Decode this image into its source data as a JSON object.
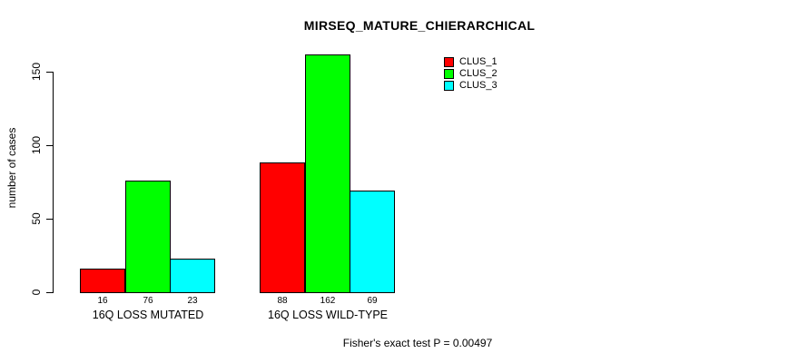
{
  "title": "MIRSEQ_MATURE_CHIERARCHICAL",
  "footer": "Fisher's exact test P = 0.00497",
  "colors": {
    "background": "#FFFFFF",
    "axis": "#000000",
    "bar_border": "#000000"
  },
  "chart_data": {
    "type": "bar",
    "title": "MIRSEQ_MATURE_CHIERARCHICAL",
    "xlabel": "",
    "ylabel": "number of cases",
    "categories": [
      "16Q LOSS MUTATED",
      "16Q LOSS WILD-TYPE"
    ],
    "series": [
      {
        "name": "CLUS_1",
        "color": "#FF0000",
        "values": [
          16,
          88
        ]
      },
      {
        "name": "CLUS_2",
        "color": "#00FF00",
        "values": [
          76,
          162
        ]
      },
      {
        "name": "CLUS_3",
        "color": "#00FFFF",
        "values": [
          23,
          69
        ]
      }
    ],
    "bar_value_labels": [
      [
        16,
        76,
        23
      ],
      [
        88,
        162,
        69
      ]
    ],
    "yticks": [
      0,
      50,
      100,
      150
    ],
    "ylim": [
      0,
      162
    ],
    "grid": false,
    "legend_position": "top-right",
    "legend_entries": [
      "CLUS_1",
      "CLUS_2",
      "CLUS_3"
    ],
    "annotation": "Fisher's exact test P = 0.00497"
  }
}
